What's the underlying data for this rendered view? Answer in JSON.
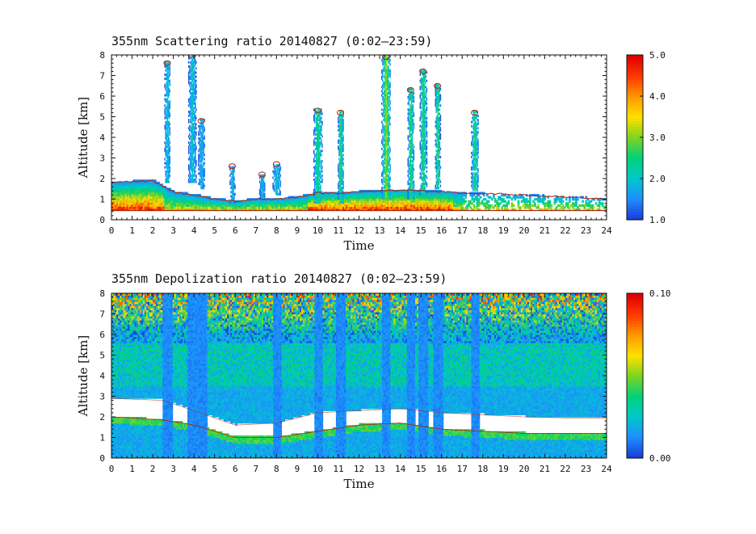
{
  "chart_data": [
    {
      "type": "heatmap",
      "title": "355nm Scattering ratio  20140827 (0:02–23:59)",
      "xlabel": "Time",
      "ylabel": "Altitude [km]",
      "xlim": [
        0,
        24
      ],
      "ylim": [
        0,
        8
      ],
      "x_ticks": [
        "0",
        "1",
        "2",
        "3",
        "4",
        "5",
        "6",
        "7",
        "8",
        "9",
        "10",
        "11",
        "12",
        "13",
        "14",
        "15",
        "16",
        "17",
        "18",
        "19",
        "20",
        "21",
        "22",
        "23",
        "24"
      ],
      "y_ticks": [
        "0",
        "1",
        "2",
        "3",
        "4",
        "5",
        "6",
        "7",
        "8"
      ],
      "colorbar": {
        "min": 1.0,
        "max": 5.0,
        "ticks": [
          "1.0",
          "2.0",
          "3.0",
          "4.0",
          "5.0"
        ]
      },
      "background_value": "below 1.0 (white)",
      "boundary_layer_top_km": [
        [
          0,
          1.8
        ],
        [
          1,
          1.85
        ],
        [
          2,
          1.9
        ],
        [
          3,
          1.35
        ],
        [
          4,
          1.2
        ],
        [
          5,
          1.0
        ],
        [
          6,
          0.9
        ],
        [
          7,
          1.0
        ],
        [
          8,
          1.0
        ],
        [
          9,
          1.1
        ],
        [
          10,
          1.3
        ],
        [
          11,
          1.3
        ],
        [
          12,
          1.35
        ],
        [
          13,
          1.4
        ],
        [
          14,
          1.45
        ],
        [
          15,
          1.4
        ],
        [
          16,
          1.35
        ],
        [
          17,
          1.3
        ],
        [
          18,
          1.25
        ],
        [
          19,
          1.25
        ],
        [
          20,
          1.2
        ],
        [
          21,
          1.15
        ],
        [
          22,
          1.1
        ],
        [
          23,
          1.05
        ],
        [
          24,
          1.0
        ]
      ],
      "ground_line_km": 0.45,
      "cloud_features": [
        {
          "time_h": 2.7,
          "base_km": 1.8,
          "top_km": 7.6,
          "peak_ratio": 2.2
        },
        {
          "time_h": 3.9,
          "base_km": 1.8,
          "top_km": 8.0,
          "peak_ratio": 2.2
        },
        {
          "time_h": 4.35,
          "base_km": 1.5,
          "top_km": 4.8,
          "peak_ratio": 2.0
        },
        {
          "time_h": 5.85,
          "base_km": 0.8,
          "top_km": 2.6,
          "peak_ratio": 2.0
        },
        {
          "time_h": 7.3,
          "base_km": 1.0,
          "top_km": 2.2,
          "peak_ratio": 2.0
        },
        {
          "time_h": 8.0,
          "base_km": 1.2,
          "top_km": 2.7,
          "peak_ratio": 2.2
        },
        {
          "time_h": 10.0,
          "base_km": 0.8,
          "top_km": 5.3,
          "peak_ratio": 2.8
        },
        {
          "time_h": 11.1,
          "base_km": 0.8,
          "top_km": 5.2,
          "peak_ratio": 3.0
        },
        {
          "time_h": 13.3,
          "base_km": 1.0,
          "top_km": 7.9,
          "peak_ratio": 3.5
        },
        {
          "time_h": 14.5,
          "base_km": 1.0,
          "top_km": 6.3,
          "peak_ratio": 3.0
        },
        {
          "time_h": 15.1,
          "base_km": 1.2,
          "top_km": 7.2,
          "peak_ratio": 3.0
        },
        {
          "time_h": 15.8,
          "base_km": 1.5,
          "top_km": 6.5,
          "peak_ratio": 3.0
        },
        {
          "time_h": 17.6,
          "base_km": 1.4,
          "top_km": 5.2,
          "peak_ratio": 2.8
        }
      ]
    },
    {
      "type": "heatmap",
      "title": "355nm Depolization ratio  20140827 (0:02–23:59)",
      "xlabel": "Time",
      "ylabel": "Altitude [km]",
      "xlim": [
        0,
        24
      ],
      "ylim": [
        0,
        8
      ],
      "x_ticks": [
        "0",
        "1",
        "2",
        "3",
        "4",
        "5",
        "6",
        "7",
        "8",
        "9",
        "10",
        "11",
        "12",
        "13",
        "14",
        "15",
        "16",
        "17",
        "18",
        "19",
        "20",
        "21",
        "22",
        "23",
        "24"
      ],
      "y_ticks": [
        "0",
        "1",
        "2",
        "3",
        "4",
        "5",
        "6",
        "7",
        "8"
      ],
      "colorbar": {
        "min": 0.0,
        "max": 0.1,
        "ticks": [
          "0.00",
          "0.10"
        ]
      },
      "noise_above_km": 5.5,
      "masked_gap_bottom_km": [
        [
          0,
          2.0
        ],
        [
          2.5,
          1.85
        ],
        [
          4,
          1.6
        ],
        [
          6,
          1.0
        ],
        [
          8,
          1.0
        ],
        [
          10,
          1.3
        ],
        [
          12,
          1.6
        ],
        [
          14,
          1.7
        ],
        [
          16,
          1.4
        ],
        [
          18,
          1.3
        ],
        [
          20,
          1.2
        ],
        [
          22,
          1.2
        ],
        [
          24,
          1.2
        ]
      ],
      "masked_gap_top_km": [
        [
          0,
          2.9
        ],
        [
          2.5,
          2.8
        ],
        [
          4,
          2.3
        ],
        [
          6,
          1.6
        ],
        [
          8,
          1.7
        ],
        [
          10,
          2.2
        ],
        [
          12,
          2.3
        ],
        [
          14,
          2.4
        ],
        [
          16,
          2.2
        ],
        [
          18,
          2.1
        ],
        [
          20,
          2.0
        ],
        [
          22,
          1.95
        ],
        [
          24,
          1.95
        ]
      ],
      "low_depol_columns_h": [
        2.7,
        3.9,
        4.35,
        8.0,
        10.0,
        11.1,
        13.3,
        14.5,
        15.1,
        15.8,
        17.6
      ]
    }
  ],
  "colors": {
    "scale": [
      "#1a3fd8",
      "#1e90ff",
      "#00c8c8",
      "#00d27a",
      "#7ed321",
      "#ffe000",
      "#ff9a00",
      "#ff3a00",
      "#e00000"
    ],
    "boundary_line": "#b02000"
  }
}
